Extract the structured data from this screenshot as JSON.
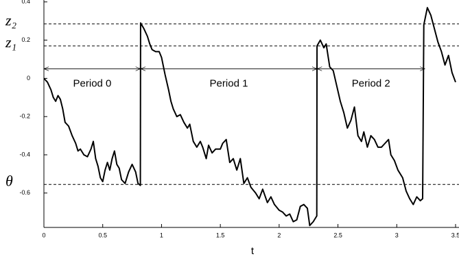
{
  "chart_data": {
    "type": "line",
    "xlabel": "t",
    "xlim": [
      0,
      3.5
    ],
    "xticks": [
      0,
      0.5,
      1,
      1.5,
      2,
      2.5,
      3,
      3.5
    ],
    "ylim": [
      -0.78,
      0.41
    ],
    "yticks": [
      0.4,
      0.2,
      0,
      -0.2,
      -0.4,
      -0.6
    ],
    "hlines": [
      {
        "label": "z₂",
        "value": 0.285
      },
      {
        "label": "z₁",
        "value": 0.17
      },
      {
        "label": "θ",
        "value": -0.555
      }
    ],
    "periods": [
      {
        "label": "Period 0",
        "start": 0,
        "end": 0.822
      },
      {
        "label": "Period 1",
        "start": 0.822,
        "end": 2.322
      },
      {
        "label": "Period 2",
        "start": 2.322,
        "end": 3.24
      }
    ],
    "arrow_y": 0.05,
    "series": [
      {
        "color": "#000000",
        "x": [
          0,
          0.03,
          0.06,
          0.08,
          0.1,
          0.12,
          0.14,
          0.16,
          0.18,
          0.21,
          0.24,
          0.27,
          0.29,
          0.31,
          0.34,
          0.37,
          0.4,
          0.42,
          0.44,
          0.46,
          0.48,
          0.5,
          0.52,
          0.54,
          0.56,
          0.58,
          0.6,
          0.62,
          0.64,
          0.66,
          0.69,
          0.72,
          0.75,
          0.78,
          0.8,
          0.82,
          0.822,
          0.85,
          0.88,
          0.9,
          0.92,
          0.95,
          0.98,
          1.0,
          1.03,
          1.06,
          1.08,
          1.1,
          1.13,
          1.16,
          1.19,
          1.22,
          1.24,
          1.27,
          1.3,
          1.33,
          1.35,
          1.38,
          1.4,
          1.43,
          1.46,
          1.5,
          1.52,
          1.55,
          1.58,
          1.61,
          1.64,
          1.67,
          1.7,
          1.73,
          1.76,
          1.8,
          1.83,
          1.86,
          1.9,
          1.93,
          1.96,
          2.0,
          2.03,
          2.06,
          2.09,
          2.12,
          2.15,
          2.18,
          2.21,
          2.24,
          2.26,
          2.29,
          2.32,
          2.322,
          2.35,
          2.38,
          2.4,
          2.43,
          2.46,
          2.49,
          2.52,
          2.55,
          2.58,
          2.61,
          2.64,
          2.67,
          2.7,
          2.72,
          2.75,
          2.78,
          2.81,
          2.84,
          2.87,
          2.9,
          2.93,
          2.95,
          2.98,
          3.01,
          3.05,
          3.08,
          3.11,
          3.14,
          3.17,
          3.2,
          3.22,
          3.23,
          3.26,
          3.29,
          3.32,
          3.35,
          3.38,
          3.41,
          3.44,
          3.47,
          3.5
        ],
        "values": [
          0,
          -0.02,
          -0.06,
          -0.1,
          -0.12,
          -0.09,
          -0.11,
          -0.16,
          -0.23,
          -0.25,
          -0.3,
          -0.34,
          -0.38,
          -0.37,
          -0.4,
          -0.41,
          -0.37,
          -0.33,
          -0.42,
          -0.46,
          -0.52,
          -0.54,
          -0.48,
          -0.44,
          -0.48,
          -0.42,
          -0.38,
          -0.45,
          -0.47,
          -0.53,
          -0.55,
          -0.49,
          -0.45,
          -0.49,
          -0.55,
          -0.56,
          0.29,
          0.26,
          0.22,
          0.18,
          0.15,
          0.14,
          0.14,
          0.11,
          0.02,
          -0.06,
          -0.12,
          -0.16,
          -0.2,
          -0.19,
          -0.23,
          -0.26,
          -0.24,
          -0.33,
          -0.36,
          -0.33,
          -0.36,
          -0.42,
          -0.35,
          -0.39,
          -0.37,
          -0.37,
          -0.34,
          -0.32,
          -0.44,
          -0.42,
          -0.48,
          -0.42,
          -0.55,
          -0.52,
          -0.57,
          -0.6,
          -0.63,
          -0.58,
          -0.65,
          -0.62,
          -0.66,
          -0.69,
          -0.7,
          -0.72,
          -0.71,
          -0.75,
          -0.74,
          -0.67,
          -0.66,
          -0.68,
          -0.77,
          -0.75,
          -0.72,
          0.17,
          0.2,
          0.16,
          0.18,
          0.06,
          0.04,
          -0.04,
          -0.12,
          -0.18,
          -0.26,
          -0.22,
          -0.15,
          -0.3,
          -0.33,
          -0.28,
          -0.36,
          -0.3,
          -0.32,
          -0.36,
          -0.36,
          -0.34,
          -0.32,
          -0.4,
          -0.43,
          -0.48,
          -0.52,
          -0.59,
          -0.63,
          -0.66,
          -0.62,
          -0.64,
          -0.63,
          0.28,
          0.37,
          0.33,
          0.26,
          0.19,
          0.14,
          0.07,
          0.12,
          0.03,
          -0.02
        ]
      }
    ]
  }
}
